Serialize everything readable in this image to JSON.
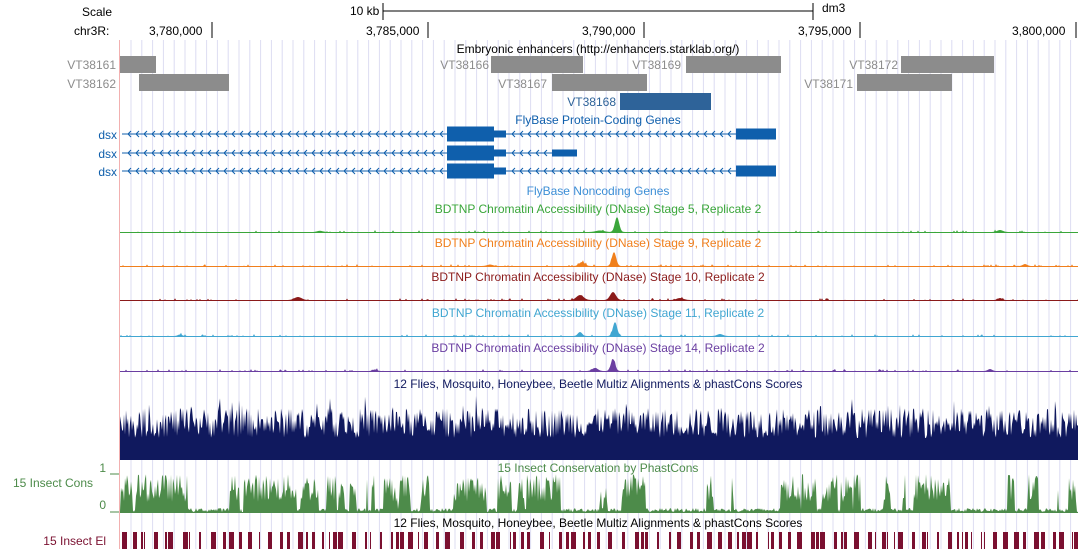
{
  "header": {
    "scale_label": "Scale",
    "scale_bar_label": "10 kb",
    "assembly": "dm3",
    "chrom_label": "chr3R:",
    "positions": [
      "3,780,000",
      "3,785,000",
      "3,790,000",
      "3,795,000",
      "3,800,000"
    ]
  },
  "enhancers": {
    "title": "Embryonic enhancers (http://enhancers.starklab.org/)",
    "color": "#8c8c8c",
    "highlight_color": "#2e6399",
    "items": [
      {
        "name": "VT38161"
      },
      {
        "name": "VT38162"
      },
      {
        "name": "VT38166"
      },
      {
        "name": "VT38167"
      },
      {
        "name": "VT38168"
      },
      {
        "name": "VT38169"
      },
      {
        "name": "VT38171"
      },
      {
        "name": "VT38172"
      }
    ]
  },
  "genes": {
    "title": "FlyBase Protein-Coding Genes",
    "color": "#0f5fac",
    "transcripts": [
      {
        "name": "dsx"
      },
      {
        "name": "dsx"
      },
      {
        "name": "dsx"
      }
    ]
  },
  "noncoding": {
    "title": "FlyBase Noncoding Genes",
    "color": "#3d8fd6"
  },
  "dnase": [
    {
      "title": "BDTNP Chromatin Accessibility (DNase) Stage 5, Replicate 2",
      "color": "#3aa63a"
    },
    {
      "title": "BDTNP Chromatin Accessibility (DNase) Stage 9, Replicate 2",
      "color": "#f07f1c"
    },
    {
      "title": "BDTNP Chromatin Accessibility (DNase) Stage 10, Replicate 2",
      "color": "#8b1a1a"
    },
    {
      "title": "BDTNP Chromatin Accessibility (DNase) Stage 11, Replicate 2",
      "color": "#41a6d1"
    },
    {
      "title": "BDTNP Chromatin Accessibility (DNase) Stage 14, Replicate 2",
      "color": "#6a3ea1"
    }
  ],
  "multiz": {
    "title": "12 Flies, Mosquito, Honeybee, Beetle Multiz Alignments & phastCons Scores",
    "color": "#10195e"
  },
  "conservation": {
    "title": "15 Insect Conservation by PhastCons",
    "side_label": "15 Insect Cons",
    "axis_max": "1",
    "axis_min": "0",
    "color": "#4d8b4a"
  },
  "elements": {
    "title": "12 Flies, Mosquito, Honeybee, Beetle Multiz Alignments & phastCons Scores",
    "side_label": "15 Insect El",
    "color": "#7a1030"
  }
}
